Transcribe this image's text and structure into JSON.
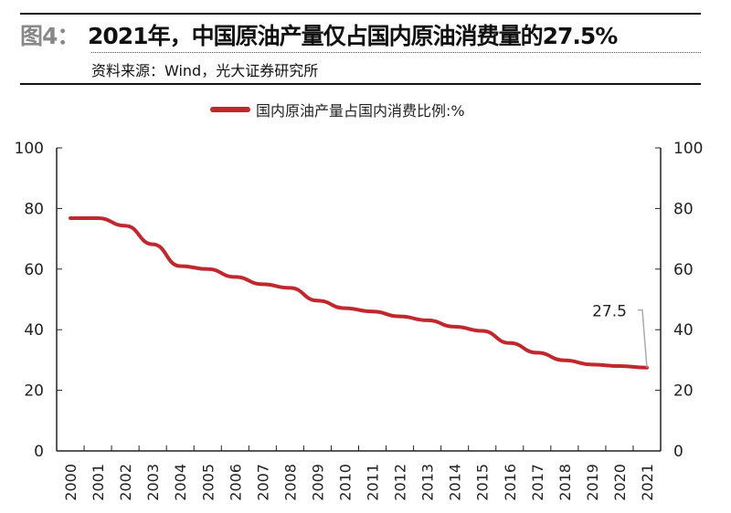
{
  "header": {
    "figure_label": "图4：",
    "title": "2021年，中国原油产量仅占国内原油消费量的27.5%",
    "source": "资料来源：Wind，光大证券研究所"
  },
  "chart_data": {
    "type": "line",
    "title": "2021年，中国原油产量仅占国内原油消费量的27.5%",
    "xlabel": "",
    "ylabel": "",
    "categories": [
      "2000",
      "2001",
      "2002",
      "2003",
      "2004",
      "2005",
      "2006",
      "2007",
      "2008",
      "2009",
      "2010",
      "2011",
      "2012",
      "2013",
      "2014",
      "2015",
      "2016",
      "2017",
      "2018",
      "2019",
      "2020",
      "2021"
    ],
    "series": [
      {
        "name": "国内原油产量占国内消费比例:%",
        "color": "#c0282e",
        "values": [
          76.8,
          76.8,
          74.3,
          68.2,
          61,
          60,
          57.4,
          55,
          53.8,
          49.6,
          47.1,
          46,
          44.4,
          43.1,
          41,
          39.6,
          35.6,
          32.4,
          29.9,
          28.5,
          28,
          27.5
        ]
      }
    ],
    "ylim": [
      0,
      100
    ],
    "yticks": [
      "0",
      "20",
      "40",
      "60",
      "80",
      "100"
    ],
    "secondary_yticks": [
      "0",
      "20",
      "40",
      "60",
      "80",
      "100"
    ],
    "annotation": "27.5",
    "legend_position": "top-center",
    "grid": false
  }
}
